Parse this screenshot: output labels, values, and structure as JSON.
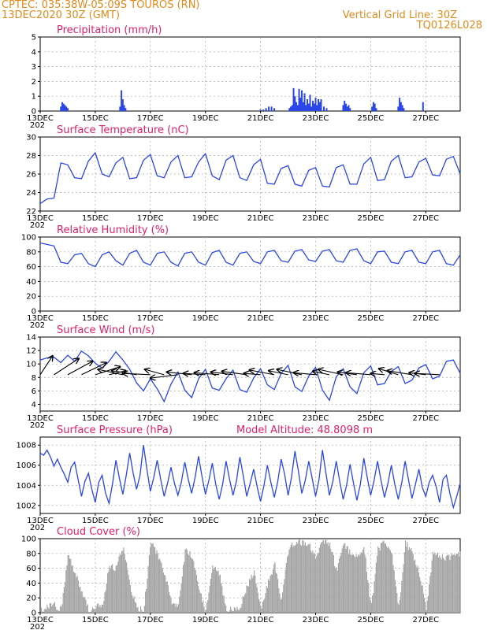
{
  "header": {
    "line1": "CPTEC:   035:38W-05:09S   TOUROS (RN)",
    "line2": "13DEC2020 30Z (GMT)",
    "right1": "Vertical Grid Line: 30Z",
    "right2": "TQ0126L028"
  },
  "colors": {
    "header": "#e08a1e",
    "title": "#e0206a",
    "line": "#2a46e6",
    "cloud": "#a7a7a7",
    "wind_arrow": "#000000"
  },
  "x_axis": {
    "tick_labels": [
      "13DEC",
      "15DEC",
      "17DEC",
      "19DEC",
      "21DEC",
      "23DEC",
      "25DEC",
      "27DEC"
    ],
    "tick_days": [
      0,
      2,
      4,
      6,
      8,
      10,
      12,
      14
    ],
    "range_days": [
      0,
      15.25
    ],
    "year_fragment": "202"
  },
  "chart_data": [
    {
      "id": "precip",
      "type": "bar",
      "title": "Precipitation (mm/h)",
      "ylim": [
        0,
        5
      ],
      "yticks": [
        0,
        1,
        2,
        3,
        4,
        5
      ],
      "ytick_labels": [
        "0",
        "1",
        "2",
        "3",
        "4",
        "5"
      ],
      "x_days": [
        0.75,
        0.8,
        0.85,
        0.9,
        0.95,
        1.0,
        2.9,
        2.95,
        3.0,
        3.05,
        3.1,
        8.0,
        8.1,
        8.2,
        8.3,
        8.4,
        8.5,
        9.05,
        9.1,
        9.15,
        9.2,
        9.25,
        9.3,
        9.35,
        9.4,
        9.45,
        9.5,
        9.55,
        9.6,
        9.65,
        9.7,
        9.75,
        9.8,
        9.85,
        9.9,
        9.95,
        10.0,
        10.05,
        10.1,
        10.15,
        10.2,
        10.3,
        10.4,
        11.0,
        11.05,
        11.1,
        11.15,
        11.2,
        11.25,
        12.05,
        12.1,
        12.15,
        12.2,
        13.0,
        13.05,
        13.1,
        13.15,
        13.2,
        13.9
      ],
      "values": [
        0.3,
        0.6,
        0.5,
        0.4,
        0.3,
        0.2,
        0.3,
        1.4,
        0.8,
        0.4,
        0.2,
        0.1,
        0.1,
        0.2,
        0.3,
        0.3,
        0.2,
        0.2,
        0.3,
        0.4,
        1.55,
        1.0,
        0.6,
        0.4,
        1.5,
        0.9,
        1.4,
        0.6,
        1.2,
        0.4,
        0.8,
        0.5,
        1.1,
        0.3,
        0.7,
        0.5,
        0.9,
        0.4,
        0.8,
        0.6,
        0.8,
        0.3,
        0.2,
        0.4,
        0.7,
        0.5,
        0.3,
        0.4,
        0.2,
        0.3,
        0.6,
        0.5,
        0.2,
        0.3,
        0.9,
        0.6,
        0.4,
        0.2,
        0.6
      ]
    },
    {
      "id": "temperature",
      "type": "line",
      "title": "Surface Temperature (nC)",
      "ylim": [
        22,
        30
      ],
      "yticks": [
        22,
        24,
        26,
        28,
        30
      ],
      "ytick_labels": [
        "22",
        "24",
        "26",
        "28",
        "30"
      ],
      "x_days": [
        0,
        0.25,
        0.5,
        0.75,
        1,
        1.25,
        1.5,
        1.75,
        2,
        2.25,
        2.5,
        2.75,
        3,
        3.25,
        3.5,
        3.75,
        4,
        4.25,
        4.5,
        4.75,
        5,
        5.25,
        5.5,
        5.75,
        6,
        6.25,
        6.5,
        6.75,
        7,
        7.25,
        7.5,
        7.75,
        8,
        8.25,
        8.5,
        8.75,
        9,
        9.25,
        9.5,
        9.75,
        10,
        10.25,
        10.5,
        10.75,
        11,
        11.25,
        11.5,
        11.75,
        12,
        12.25,
        12.5,
        12.75,
        13,
        13.25,
        13.5,
        13.75,
        14,
        14.25,
        14.5,
        14.75,
        15,
        15.25
      ],
      "values": [
        22.8,
        23.3,
        23.4,
        27.2,
        27.0,
        25.6,
        25.5,
        27.4,
        28.3,
        26.0,
        25.7,
        27.2,
        27.8,
        25.5,
        25.6,
        27.5,
        28.1,
        25.8,
        25.6,
        27.3,
        28.0,
        25.6,
        25.7,
        27.3,
        28.2,
        25.8,
        25.4,
        27.5,
        28.0,
        25.6,
        25.3,
        27.0,
        27.6,
        25.0,
        24.9,
        26.6,
        26.9,
        24.9,
        24.7,
        26.4,
        26.7,
        24.7,
        24.6,
        26.7,
        27.0,
        24.9,
        24.9,
        27.1,
        27.8,
        25.3,
        25.4,
        27.4,
        28.0,
        25.6,
        25.7,
        27.3,
        27.7,
        25.9,
        25.8,
        27.6,
        27.9,
        26.0
      ]
    },
    {
      "id": "humidity",
      "type": "line",
      "title": "Relative Humidity (%)",
      "ylim": [
        0,
        100
      ],
      "yticks": [
        0,
        20,
        40,
        60,
        80,
        100
      ],
      "ytick_labels": [
        "0",
        "20",
        "40",
        "60",
        "80",
        "100"
      ],
      "x_days": [
        0,
        0.25,
        0.5,
        0.75,
        1,
        1.25,
        1.5,
        1.75,
        2,
        2.25,
        2.5,
        2.75,
        3,
        3.25,
        3.5,
        3.75,
        4,
        4.25,
        4.5,
        4.75,
        5,
        5.25,
        5.5,
        5.75,
        6,
        6.25,
        6.5,
        6.75,
        7,
        7.25,
        7.5,
        7.75,
        8,
        8.25,
        8.5,
        8.75,
        9,
        9.25,
        9.5,
        9.75,
        10,
        10.25,
        10.5,
        10.75,
        11,
        11.25,
        11.5,
        11.75,
        12,
        12.25,
        12.5,
        12.75,
        13,
        13.25,
        13.5,
        13.75,
        14,
        14.25,
        14.5,
        14.75,
        15,
        15.25
      ],
      "values": [
        92,
        90,
        88,
        66,
        64,
        76,
        78,
        64,
        60,
        76,
        80,
        68,
        62,
        78,
        82,
        66,
        62,
        78,
        80,
        66,
        61,
        78,
        80,
        66,
        62,
        79,
        82,
        66,
        62,
        78,
        80,
        67,
        64,
        80,
        82,
        68,
        66,
        81,
        83,
        69,
        67,
        81,
        83,
        68,
        66,
        82,
        84,
        68,
        64,
        80,
        81,
        66,
        64,
        80,
        82,
        66,
        64,
        80,
        82,
        64,
        62,
        76
      ]
    },
    {
      "id": "wind",
      "type": "line",
      "title": "Surface Wind (m/s)",
      "ylim": [
        3,
        14
      ],
      "yticks": [
        4,
        6,
        8,
        10,
        12,
        14
      ],
      "ytick_labels": [
        "4",
        "6",
        "8",
        "10",
        "12",
        "14"
      ],
      "x_days": [
        0,
        0.25,
        0.5,
        0.75,
        1,
        1.25,
        1.5,
        1.75,
        2,
        2.25,
        2.5,
        2.75,
        3,
        3.25,
        3.5,
        3.75,
        4,
        4.25,
        4.5,
        4.75,
        5,
        5.25,
        5.5,
        5.75,
        6,
        6.25,
        6.5,
        6.75,
        7,
        7.25,
        7.5,
        7.75,
        8,
        8.25,
        8.5,
        8.75,
        9,
        9.25,
        9.5,
        9.75,
        10,
        10.25,
        10.5,
        10.75,
        11,
        11.25,
        11.5,
        11.75,
        12,
        12.25,
        12.5,
        12.75,
        13,
        13.25,
        13.5,
        13.75,
        14,
        14.25,
        14.5,
        14.75,
        15,
        15.25
      ],
      "values": [
        10.6,
        10.9,
        11.0,
        10.2,
        11.3,
        10.4,
        11.9,
        11.2,
        10.1,
        9.4,
        10.4,
        11.8,
        10.6,
        9.2,
        7.2,
        6.0,
        7.8,
        6.3,
        4.4,
        7.0,
        8.8,
        6.1,
        5.0,
        7.8,
        9.2,
        6.4,
        6.1,
        7.8,
        9.1,
        6.2,
        5.8,
        7.9,
        9.3,
        6.9,
        6.2,
        8.6,
        9.8,
        6.6,
        5.9,
        8.2,
        9.5,
        6.1,
        4.6,
        8.1,
        9.3,
        6.6,
        5.6,
        8.7,
        9.7,
        6.9,
        7.1,
        8.9,
        9.6,
        7.1,
        7.6,
        9.4,
        9.9,
        7.8,
        8.2,
        10.4,
        10.6,
        8.6
      ],
      "arrows": {
        "description": "wind direction vectors",
        "x_days": [
          0.0,
          0.5,
          1.0,
          1.5,
          2.0,
          2.5,
          3.0,
          3.5,
          4.0,
          4.5,
          5.0,
          5.5,
          6.0,
          6.5,
          7.0,
          7.5,
          8.0,
          8.5,
          9.0,
          9.5,
          10.0,
          10.5,
          11.0,
          11.5,
          12.0,
          12.5,
          13.0,
          13.5,
          14.0,
          14.5
        ],
        "y_level": 8.4,
        "dx_days": [
          0.45,
          0.9,
          0.9,
          0.9,
          0.9,
          0.6,
          -0.9,
          -0.9,
          -1.0,
          -0.7,
          -1.0,
          -0.9,
          -0.8,
          -0.9,
          -0.8,
          -0.9,
          -0.6,
          -0.9,
          -0.7,
          -0.9,
          -0.8,
          -0.6,
          -0.9,
          -0.7,
          -0.9,
          -0.5,
          -0.7,
          -0.9,
          -0.6,
          -0.9
        ],
        "dy": [
          2.8,
          2.4,
          2.0,
          1.8,
          1.2,
          0.6,
          0.8,
          0.6,
          0.2,
          0.8,
          -0.5,
          0.4,
          0.2,
          0.3,
          0.4,
          0.5,
          0.2,
          0.7,
          0.6,
          0.8,
          0.3,
          0.5,
          0.8,
          0.4,
          0.3,
          0.2,
          0.9,
          0.6,
          0.3,
          0.2
        ]
      }
    },
    {
      "id": "pressure",
      "type": "line",
      "title": "Surface Pressure (hPa)",
      "annotation": "Model Altitude: 48.8098  m",
      "ylim": [
        1001.2,
        1008.8
      ],
      "yticks": [
        1002,
        1004,
        1006,
        1008
      ],
      "ytick_labels": [
        "1002",
        "1004",
        "1006",
        "1008"
      ],
      "x_days": [
        0,
        0.125,
        0.25,
        0.375,
        0.5,
        0.625,
        0.75,
        0.875,
        1,
        1.125,
        1.25,
        1.375,
        1.5,
        1.625,
        1.75,
        1.875,
        2,
        2.125,
        2.25,
        2.375,
        2.5,
        2.625,
        2.75,
        2.875,
        3,
        3.125,
        3.25,
        3.375,
        3.5,
        3.625,
        3.75,
        3.875,
        4,
        4.125,
        4.25,
        4.375,
        4.5,
        4.625,
        4.75,
        4.875,
        5,
        5.125,
        5.25,
        5.375,
        5.5,
        5.625,
        5.75,
        5.875,
        6,
        6.125,
        6.25,
        6.375,
        6.5,
        6.625,
        6.75,
        6.875,
        7,
        7.125,
        7.25,
        7.375,
        7.5,
        7.625,
        7.75,
        7.875,
        8,
        8.125,
        8.25,
        8.375,
        8.5,
        8.625,
        8.75,
        8.875,
        9,
        9.125,
        9.25,
        9.375,
        9.5,
        9.625,
        9.75,
        9.875,
        10,
        10.125,
        10.25,
        10.375,
        10.5,
        10.625,
        10.75,
        10.875,
        11,
        11.125,
        11.25,
        11.375,
        11.5,
        11.625,
        11.75,
        11.875,
        12,
        12.125,
        12.25,
        12.375,
        12.5,
        12.625,
        12.75,
        12.875,
        13,
        13.125,
        13.25,
        13.375,
        13.5,
        13.625,
        13.75,
        13.875,
        14,
        14.125,
        14.25,
        14.375,
        14.5,
        14.625,
        14.75,
        14.875,
        15,
        15.125,
        15.25
      ],
      "values": [
        1007.2,
        1007.0,
        1007.5,
        1006.8,
        1005.9,
        1006.6,
        1005.8,
        1005.1,
        1004.3,
        1005.8,
        1006.3,
        1004.6,
        1002.9,
        1004.4,
        1005.2,
        1003.6,
        1002.3,
        1004.3,
        1005.0,
        1003.2,
        1002.2,
        1004.1,
        1006.5,
        1004.7,
        1003.1,
        1005.0,
        1007.2,
        1005.2,
        1003.6,
        1005.0,
        1008.0,
        1005.6,
        1003.4,
        1004.8,
        1006.5,
        1004.6,
        1002.9,
        1004.2,
        1005.8,
        1004.2,
        1003.0,
        1004.3,
        1006.3,
        1004.6,
        1003.2,
        1004.8,
        1006.9,
        1004.9,
        1003.1,
        1004.5,
        1006.2,
        1004.1,
        1002.6,
        1004.1,
        1006.4,
        1004.6,
        1003.0,
        1004.4,
        1006.8,
        1004.9,
        1002.9,
        1004.2,
        1005.6,
        1003.9,
        1002.4,
        1004.0,
        1006.0,
        1004.3,
        1002.8,
        1004.4,
        1006.6,
        1005.1,
        1003.0,
        1004.8,
        1007.4,
        1005.4,
        1003.2,
        1004.5,
        1006.4,
        1004.7,
        1002.9,
        1004.6,
        1007.5,
        1005.2,
        1003.0,
        1004.4,
        1006.4,
        1004.4,
        1002.6,
        1004.0,
        1006.1,
        1004.2,
        1002.5,
        1004.1,
        1006.7,
        1004.8,
        1003.0,
        1004.5,
        1006.4,
        1004.5,
        1002.8,
        1004.2,
        1006.0,
        1004.1,
        1002.6,
        1004.2,
        1006.4,
        1004.5,
        1002.7,
        1004.1,
        1005.6,
        1003.8,
        1002.9,
        1004.3,
        1005.0,
        1003.9,
        1002.3,
        1004.6,
        1005.0,
        1003.2,
        1001.8,
        1002.9,
        1004.2
      ]
    },
    {
      "id": "cloud",
      "type": "area",
      "title": "Cloud Cover (%)",
      "ylim": [
        0,
        100
      ],
      "yticks": [
        0,
        20,
        40,
        60,
        80,
        100
      ],
      "ytick_labels": [
        "0",
        "20",
        "40",
        "60",
        "80",
        "100"
      ],
      "x_days": [
        0,
        0.25,
        0.5,
        0.75,
        1,
        1.25,
        1.5,
        1.75,
        2,
        2.25,
        2.5,
        2.75,
        3,
        3.25,
        3.5,
        3.75,
        4,
        4.25,
        4.5,
        4.75,
        5,
        5.25,
        5.5,
        5.75,
        6,
        6.25,
        6.5,
        6.75,
        7,
        7.25,
        7.5,
        7.75,
        8,
        8.25,
        8.5,
        8.75,
        9,
        9.25,
        9.5,
        9.75,
        10,
        10.25,
        10.5,
        10.75,
        11,
        11.25,
        11.5,
        11.75,
        12,
        12.25,
        12.5,
        12.75,
        13,
        13.25,
        13.5,
        13.75,
        14,
        14.25,
        14.5,
        14.75,
        15,
        15.25
      ],
      "values": [
        8,
        12,
        15,
        10,
        84,
        60,
        30,
        10,
        12,
        14,
        70,
        65,
        95,
        40,
        10,
        8,
        100,
        85,
        60,
        20,
        10,
        90,
        80,
        35,
        8,
        70,
        55,
        10,
        8,
        12,
        40,
        60,
        10,
        45,
        70,
        20,
        90,
        100,
        100,
        95,
        80,
        100,
        100,
        60,
        100,
        85,
        80,
        95,
        10,
        90,
        100,
        90,
        10,
        100,
        85,
        60,
        10,
        85,
        80,
        80,
        82,
        84
      ]
    }
  ]
}
